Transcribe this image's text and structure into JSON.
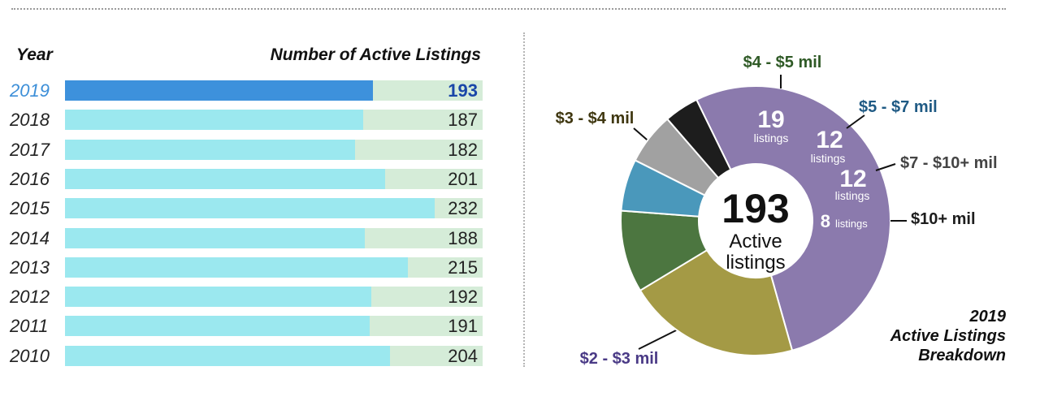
{
  "chart_data": [
    {
      "type": "bar",
      "orientation": "horizontal",
      "xlabel": "Number of Active Listings",
      "ylabel": "Year",
      "highlight_color": "#3d91dc",
      "bar_color": "#9be8ef",
      "track_color": "#d5ecd8",
      "rows": [
        {
          "year": "2019",
          "value": 193,
          "highlight": true
        },
        {
          "year": "2018",
          "value": 187
        },
        {
          "year": "2017",
          "value": 182
        },
        {
          "year": "2016",
          "value": 201
        },
        {
          "year": "2015",
          "value": 232
        },
        {
          "year": "2014",
          "value": 188
        },
        {
          "year": "2013",
          "value": 215
        },
        {
          "year": "2012",
          "value": 192
        },
        {
          "year": "2011",
          "value": 191
        },
        {
          "year": "2010",
          "value": 204
        }
      ]
    },
    {
      "type": "pie",
      "style": "donut",
      "title": "2019\nActive Listings\nBreakdown",
      "center": {
        "value": "193",
        "label_line1": "Active",
        "label_line2": "listings"
      },
      "unit_label": "listings",
      "slices": [
        {
          "label": "$2 - $3 mil",
          "value": 102,
          "color": "#8b7aad",
          "label_color": "#4a3a86"
        },
        {
          "label": "$3 - $4 mil",
          "value": 40,
          "color": "#a49a45",
          "label_color": "#3f3710"
        },
        {
          "label": "$4 - $5 mil",
          "value": 19,
          "color": "#4c7640",
          "label_color": "#2f5a26"
        },
        {
          "label": "$5 - $7 mil",
          "value": 12,
          "color": "#4a98bb",
          "label_color": "#1f5a84"
        },
        {
          "label": "$7 - $10+ mil",
          "value": 12,
          "color": "#a1a1a1",
          "label_color": "#444444"
        },
        {
          "label": "$10+ mil",
          "value": 8,
          "color": "#1d1d1d",
          "label_color": "#1d1d1d"
        }
      ]
    }
  ]
}
